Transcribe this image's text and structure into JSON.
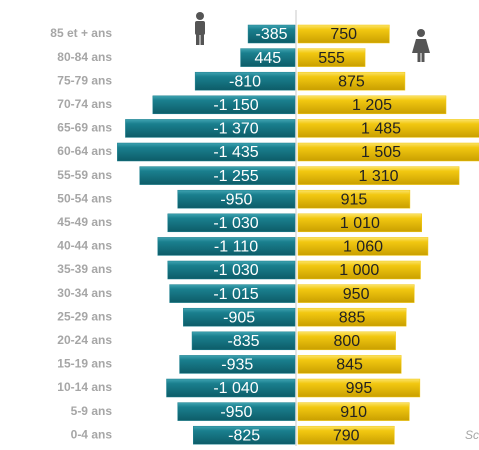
{
  "chart_data": {
    "type": "pyramid",
    "categories": [
      "85 et + ans",
      "80-84 ans",
      "75-79 ans",
      "70-74 ans",
      "65-69 ans",
      "60-64 ans",
      "55-59 ans",
      "50-54 ans",
      "45-49 ans",
      "40-44 ans",
      "35-39 ans",
      "30-34 ans",
      "25-29 ans",
      "20-24 ans",
      "15-19 ans",
      "10-14 ans",
      "5-9 ans",
      "0-4 ans"
    ],
    "series": [
      {
        "color": "#1a7f8e",
        "values": [
          -385,
          -445,
          -810,
          -1150,
          -1370,
          -1435,
          -1255,
          -950,
          -1030,
          -1110,
          -1030,
          -1015,
          -905,
          -835,
          -935,
          -1040,
          -950,
          -825
        ],
        "value_labels": [
          "-385",
          "445",
          "-810",
          "-1 150",
          "-1 370",
          "-1 435",
          "-1 255",
          "-950",
          "-1 030",
          "-1 110",
          "-1 030",
          "-1 015",
          "-905",
          "-835",
          "-935",
          "-1 040",
          "-950",
          "-825"
        ]
      },
      {
        "color": "#f2c811",
        "values": [
          750,
          555,
          875,
          1205,
          1485,
          1505,
          1310,
          915,
          1010,
          1060,
          1000,
          950,
          885,
          800,
          845,
          995,
          910,
          790
        ],
        "value_labels": [
          "750",
          "555",
          "875",
          "1 205",
          "1 485",
          "1 505",
          "1 310",
          "915",
          "1 010",
          "1 060",
          "1 000",
          "950",
          "885",
          "800",
          "845",
          "995",
          "910",
          "790"
        ]
      }
    ],
    "source": "Sc"
  }
}
